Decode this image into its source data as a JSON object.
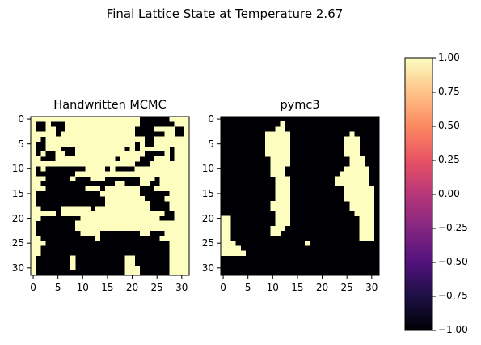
{
  "figure": {
    "suptitle": "Final Lattice State at Temperature 2.67"
  },
  "chart_data": [
    {
      "type": "heatmap",
      "title": "Handwritten MCMC",
      "xlabel": "",
      "ylabel": "",
      "x_ticks": [
        "0",
        "5",
        "10",
        "15",
        "20",
        "25",
        "30"
      ],
      "y_ticks": [
        "0",
        "5",
        "10",
        "15",
        "20",
        "25",
        "30"
      ],
      "grid_size": 32,
      "value_range": [
        -1,
        1
      ],
      "colors": {
        "positive": "#fcfdbf",
        "negative": "#000004"
      },
      "rows": [
        "11111111111111111111110000001111",
        "10010001111111111111110000000111",
        "10011001111111111111100001111001",
        "11111011111111111111100000011001",
        "11011111111111111111111001111111",
        "10011111111111111111101001111111",
        "10011100011111111110101111110111",
        "10100110011111111111111000010111",
        "11000111111111111011110001110111",
        "11111111111111111111100011111111",
        "10100000000111101000011111111111",
        "10000000011111111111111111111111",
        "11100000100011100000001110111111",
        "11000000000000000110001100111111",
        "11100000000111011111110001111111",
        "10000000000000111111110000001111",
        "10000000000000011111111000011111",
        "10000000000000011111111100001111",
        "11000011111101111111111100001111",
        "11111011111111111111111111100111",
        "11000000001111111111111111000111",
        "10000000011111111111111111111111",
        "10000000011111111111111111111111",
        "10000000001111000000001100011111",
        "11000000000001000000000000111111",
        "11100000000000000000000000001111",
        "11000000000000000000000000001111",
        "11000000000000000000000000001111",
        "10000000100000000001100000001111",
        "10000000100000000001100000001111",
        "10000000100000000001110000001111",
        "10000000000000000001110000001111"
      ]
    },
    {
      "type": "heatmap",
      "title": "pymc3",
      "xlabel": "",
      "ylabel": "",
      "x_ticks": [
        "0",
        "5",
        "10",
        "15",
        "20",
        "25",
        "30"
      ],
      "y_ticks": [
        "0",
        "5",
        "10",
        "15",
        "20",
        "25",
        "30"
      ],
      "grid_size": 32,
      "value_range": [
        -1,
        1
      ],
      "colors": {
        "positive": "#fcfdbf",
        "negative": "#000004"
      },
      "rows": [
        "00000000000000000000000000000000",
        "00000000000010000000000000000000",
        "00000000000110000000000000000000",
        "00000000011111000000000000100000",
        "00000000011111000000000001110000",
        "00000000011111000000000001110000",
        "00000000011111000000000001110000",
        "00000000011111000000000001110000",
        "00000000001111000000000000111000",
        "00000000001111000000000000111000",
        "00000000001110000000000001111100",
        "00000000001110000000000011111100",
        "00000000000111000000000111111100",
        "00000000000111000000000111111100",
        "00000000000111000000000001111110",
        "00000000000111000000000001111110",
        "00000000000111000000000001111110",
        "00000000001111000000000000111110",
        "00000000001111000000000000111110",
        "00000000000111000000000000011110",
        "11000000000111000000000000001110",
        "11000000000111000000000000001110",
        "11000000001110000000000000001110",
        "11000000001100000000000000001110",
        "11000000000000000000000000001110",
        "11100000000000000100000000000000",
        "11110000000000000000000000000000",
        "11111000000000000000000000000000",
        "00000000000000000000000000000000",
        "00000000000000000000000000000000",
        "00000000000000000000000000000000",
        "00000000000000000000000000000000"
      ]
    },
    {
      "type": "colorbar",
      "range": [
        -1.0,
        1.0
      ],
      "ticks": [
        "1.00",
        "0.75",
        "0.50",
        "0.25",
        "0.00",
        "−0.25",
        "−0.50",
        "−0.75",
        "−1.00"
      ],
      "tick_values": [
        1.0,
        0.75,
        0.5,
        0.25,
        0.0,
        -0.25,
        -0.5,
        -0.75,
        -1.0
      ],
      "colormap": "magma",
      "gradient_stops": [
        "#000004",
        "#1c1044",
        "#51127c",
        "#832681",
        "#b73779",
        "#e75263",
        "#fc8961",
        "#fec287",
        "#fcfdbf"
      ]
    }
  ]
}
